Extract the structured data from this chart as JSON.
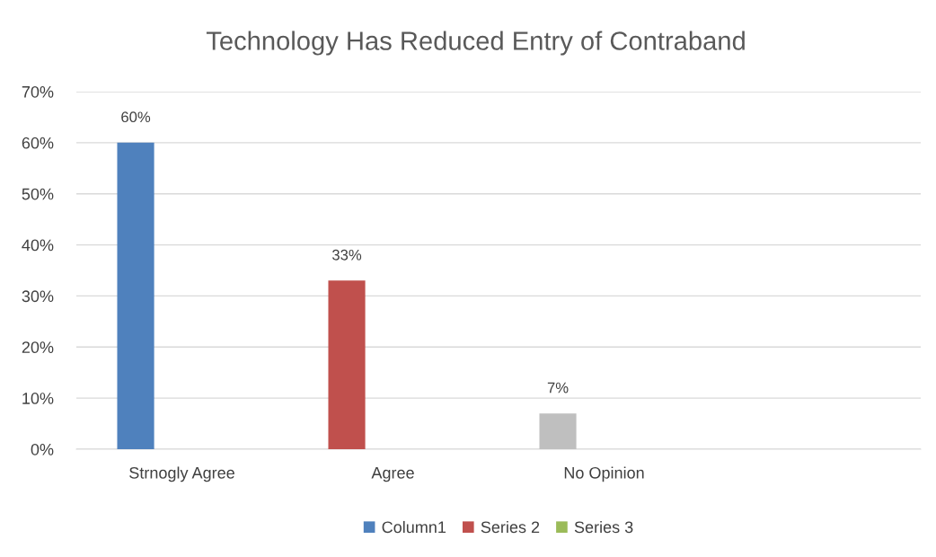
{
  "chart_data": {
    "type": "bar",
    "title": "Technology Has Reduced Entry of Contraband",
    "categories": [
      "Strnogly Agree",
      "Agree",
      "No Opinion",
      null
    ],
    "series": [
      {
        "name": "Column1",
        "color": "#4f81bd",
        "colors": [
          "#4f81bd",
          "#c0504d",
          "#bfbfbf",
          null
        ],
        "values": [
          60,
          33,
          7,
          null
        ],
        "value_labels": [
          "60%",
          "33%",
          "7%",
          null
        ]
      },
      {
        "name": "Series 2",
        "color": "#c0504d",
        "values": [
          null,
          null,
          null,
          null
        ]
      },
      {
        "name": "Series 3",
        "color": "#9bbb59",
        "values": [
          null,
          null,
          null,
          null
        ]
      }
    ],
    "ylim": [
      0,
      70
    ],
    "yticks": [
      {
        "value": 0,
        "label": "0%"
      },
      {
        "value": 10,
        "label": "10%"
      },
      {
        "value": 20,
        "label": "20%"
      },
      {
        "value": 30,
        "label": "30%"
      },
      {
        "value": 40,
        "label": "40%"
      },
      {
        "value": 50,
        "label": "50%"
      },
      {
        "value": 60,
        "label": "60%"
      },
      {
        "value": 70,
        "label": "70%"
      }
    ],
    "grid": "y",
    "legend": "bottom"
  }
}
